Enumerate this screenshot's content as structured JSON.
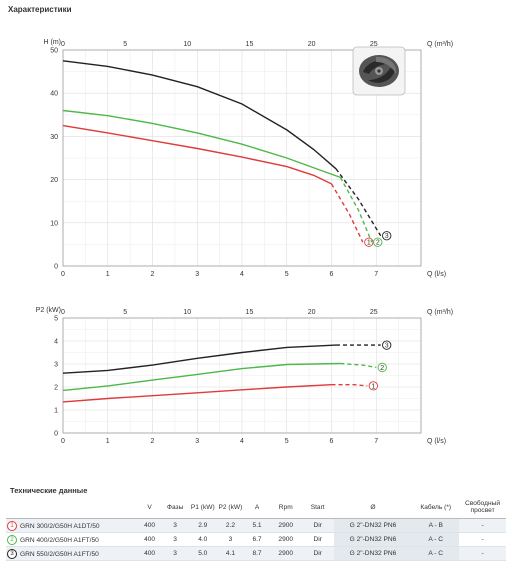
{
  "header": {
    "title": "Характеристики"
  },
  "chart_data": [
    {
      "type": "line",
      "ylabel": "H (m)",
      "x_top_label": "Q (m³/h)",
      "xlabel": "Q (l/s)",
      "xlim": [
        0,
        8
      ],
      "ylim": [
        0,
        50
      ],
      "x_ticks": [
        "0",
        "1",
        "2",
        "3",
        "4",
        "5",
        "6",
        "7"
      ],
      "y_ticks": [
        "0",
        "10",
        "20",
        "30",
        "40",
        "50"
      ],
      "x_top_ticks": [
        "0",
        "5",
        "10",
        "15",
        "20",
        "25"
      ],
      "grid": true,
      "series": [
        {
          "marker": "1",
          "color": "#e03a3a",
          "x": [
            0,
            1,
            2,
            3,
            4,
            5,
            5.6,
            6.0
          ],
          "y": [
            32.5,
            30.8,
            29.0,
            27.2,
            25.2,
            23.0,
            21.0,
            19.0
          ],
          "x_dash": [
            6.0,
            6.4,
            6.7
          ],
          "y_dash": [
            19.0,
            12.0,
            5.5
          ]
        },
        {
          "marker": "2",
          "color": "#4db848",
          "x": [
            0,
            1,
            2,
            3,
            4,
            5,
            5.8,
            6.2
          ],
          "y": [
            36.0,
            34.8,
            33.0,
            30.8,
            28.2,
            25.0,
            22.0,
            20.5
          ],
          "x_dash": [
            6.2,
            6.6,
            6.9
          ],
          "y_dash": [
            20.5,
            13.0,
            5.5
          ]
        },
        {
          "marker": "3",
          "color": "#222222",
          "x": [
            0,
            1,
            2,
            3,
            4,
            5,
            5.6,
            6.1
          ],
          "y": [
            47.5,
            46.2,
            44.2,
            41.5,
            37.5,
            31.5,
            27.0,
            22.5
          ],
          "x_dash": [
            6.1,
            6.6,
            7.1
          ],
          "y_dash": [
            22.5,
            15.5,
            7.0
          ]
        }
      ]
    },
    {
      "type": "line",
      "ylabel": "P2 (kW)",
      "x_top_label": "Q (m³/h)",
      "xlabel": "Q (l/s)",
      "xlim": [
        0,
        8
      ],
      "ylim": [
        0,
        5
      ],
      "x_ticks": [
        "0",
        "1",
        "2",
        "3",
        "4",
        "5",
        "6",
        "7"
      ],
      "y_ticks": [
        "0",
        "1",
        "2",
        "3",
        "4",
        "5"
      ],
      "x_top_ticks": [
        "0",
        "5",
        "10",
        "15",
        "20",
        "25"
      ],
      "grid": true,
      "series": [
        {
          "marker": "1",
          "color": "#e03a3a",
          "x": [
            0,
            1,
            2,
            3,
            4,
            5,
            6.0
          ],
          "y": [
            1.35,
            1.5,
            1.62,
            1.75,
            1.88,
            2.0,
            2.1
          ],
          "x_dash": [
            6.0,
            6.5,
            6.8
          ],
          "y_dash": [
            2.1,
            2.1,
            2.05
          ]
        },
        {
          "marker": "2",
          "color": "#4db848",
          "x": [
            0,
            1,
            2,
            3,
            4,
            5,
            6.2
          ],
          "y": [
            1.85,
            2.05,
            2.3,
            2.55,
            2.8,
            2.98,
            3.02
          ],
          "x_dash": [
            6.2,
            6.7,
            7.0
          ],
          "y_dash": [
            3.02,
            2.95,
            2.85
          ]
        },
        {
          "marker": "3",
          "color": "#222222",
          "x": [
            0,
            1,
            2,
            3,
            4,
            5,
            6.1
          ],
          "y": [
            2.6,
            2.72,
            2.95,
            3.25,
            3.5,
            3.72,
            3.82
          ],
          "x_dash": [
            6.1,
            6.6,
            7.1
          ],
          "y_dash": [
            3.82,
            3.82,
            3.82
          ]
        }
      ]
    }
  ],
  "table": {
    "title": "Технические данные",
    "headers": [
      "",
      "V",
      "Фазы",
      "P1 (kW)",
      "P2 (kW)",
      "A",
      "Rpm",
      "Start",
      "Ø",
      "Кабель (*)",
      "Свободный просвет"
    ],
    "rows": [
      {
        "marker": "1",
        "model": "GRN 300/2/G50H A1DT/50",
        "v": "400",
        "phases": "3",
        "p1": "2.9",
        "p2": "2.2",
        "a": "5.1",
        "rpm": "2900",
        "start": "Dir",
        "connection": "G 2\"-DN32 PN6",
        "cable": "A - B",
        "clearance": "-"
      },
      {
        "marker": "2",
        "model": "GRN 400/2/G50H A1FT/50",
        "v": "400",
        "phases": "3",
        "p1": "4.0",
        "p2": "3",
        "a": "6.7",
        "rpm": "2900",
        "start": "Dir",
        "connection": "G 2\"-DN32 PN6",
        "cable": "A - C",
        "clearance": "-"
      },
      {
        "marker": "3",
        "model": "GRN 550/2/G50H A1FT/50",
        "v": "400",
        "phases": "3",
        "p1": "5.0",
        "p2": "4.1",
        "a": "8.7",
        "rpm": "2900",
        "start": "Dir",
        "connection": "G 2\"-DN32 PN6",
        "cable": "A - C",
        "clearance": "-"
      }
    ]
  },
  "impeller_image": {
    "icon": "impeller-icon"
  }
}
